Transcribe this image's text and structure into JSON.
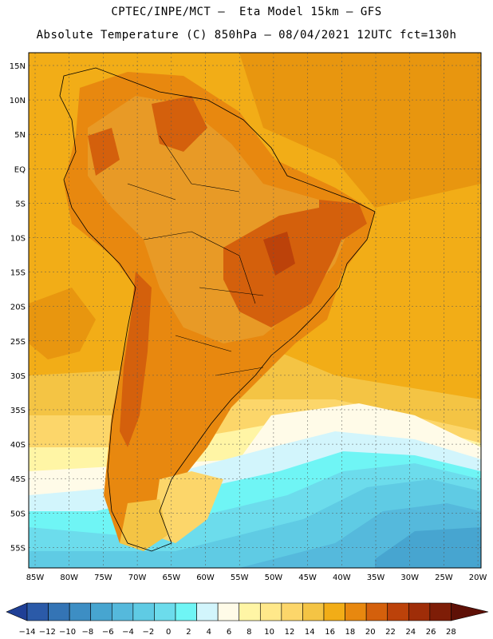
{
  "header": {
    "line1": "CPTEC/INPE/MCT –  Eta Model 15km – GFS",
    "line2": "Absolute Temperature (C) 850hPa – 08/04/2021 12UTC fct=130h"
  },
  "map": {
    "lat_labels": [
      "15N",
      "10N",
      "5N",
      "EQ",
      "5S",
      "10S",
      "15S",
      "20S",
      "25S",
      "30S",
      "35S",
      "40S",
      "45S",
      "50S",
      "55S"
    ],
    "lon_labels": [
      "85W",
      "80W",
      "75W",
      "70W",
      "65W",
      "60W",
      "55W",
      "50W",
      "45W",
      "40W",
      "35W",
      "30W",
      "25W",
      "20W"
    ]
  },
  "colorbar": {
    "labels": [
      "-14",
      "-12",
      "-10",
      "-8",
      "-6",
      "-4",
      "-2",
      "0",
      "2",
      "4",
      "6",
      "8",
      "10",
      "12",
      "14",
      "16",
      "18",
      "20",
      "22",
      "24",
      "26",
      "28"
    ],
    "colors": [
      "#1f3f96",
      "#2b5aa8",
      "#3474b5",
      "#3d8ec4",
      "#47a5d0",
      "#55b9dc",
      "#5fcbe4",
      "#6cdcec",
      "#6ff5f5",
      "#d2f5fc",
      "#fffbe8",
      "#fff5a5",
      "#ffe88a",
      "#fcd66a",
      "#f4c444",
      "#f2ad17",
      "#e8880f",
      "#d4600c",
      "#bc420a",
      "#9f2d08",
      "#7e1d07",
      "#5e1006"
    ]
  }
}
